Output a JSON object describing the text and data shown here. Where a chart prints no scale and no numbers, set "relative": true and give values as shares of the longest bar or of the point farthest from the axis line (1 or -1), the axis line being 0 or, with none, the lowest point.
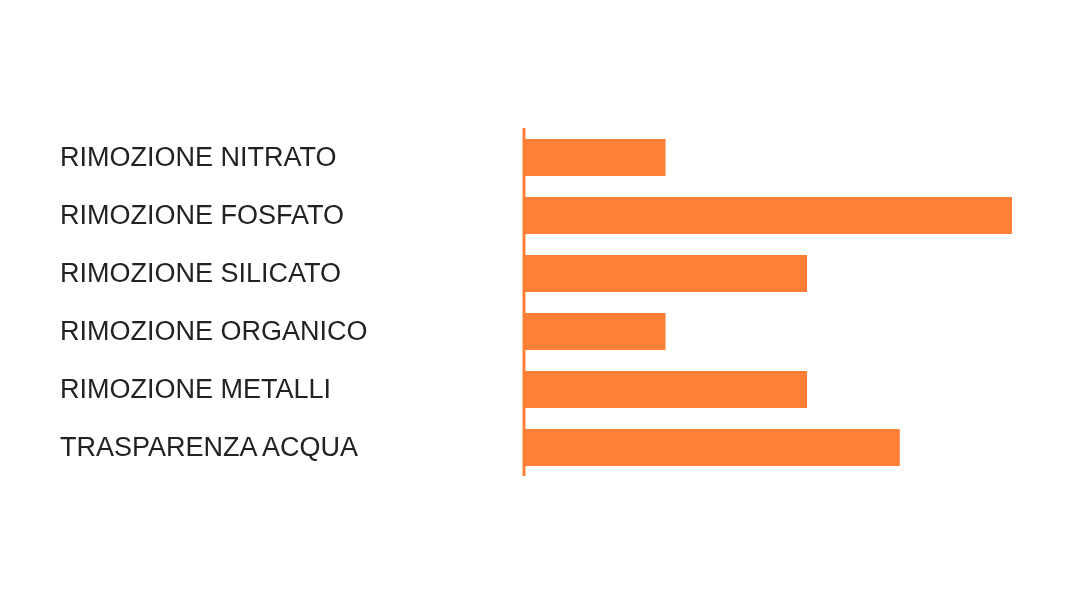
{
  "chart_data": {
    "type": "bar",
    "orientation": "horizontal",
    "relative": true,
    "categories": [
      "RIMOZIONE NITRATO",
      "RIMOZIONE FOSFATO",
      "RIMOZIONE SILICATO",
      "RIMOZIONE ORGANICO",
      "RIMOZIONE METALLI",
      "TRASPARENZA ACQUA"
    ],
    "values": [
      0.29,
      1,
      0.58,
      0.29,
      0.58,
      0.77
    ],
    "color": "#fe7f35",
    "grid": false,
    "legend": false
  }
}
